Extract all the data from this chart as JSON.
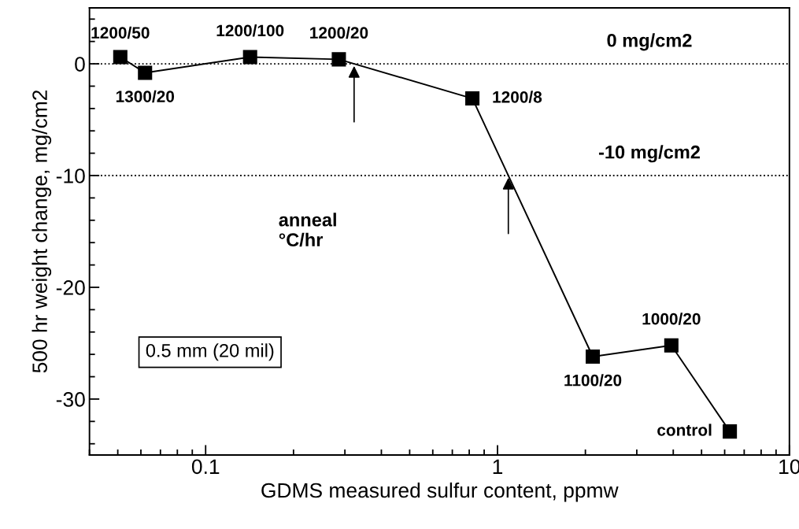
{
  "chart_data": {
    "type": "line",
    "xlabel": "GDMS measured sulfur content, ppmw",
    "ylabel": "500 hr weight change, mg/cm2",
    "x": [
      0.051,
      0.062,
      0.142,
      0.286,
      0.82,
      2.12,
      3.94,
      6.25
    ],
    "series": [
      {
        "color": "#000000",
        "values": [
          0.6,
          -0.8,
          0.6,
          0.4,
          -3.1,
          -26.2,
          -25.2,
          -32.9
        ]
      }
    ],
    "marker": "square",
    "line_style": "solid",
    "log": "x",
    "xlim": [
      0.04,
      10
    ],
    "xticks": [
      0.1,
      1,
      10
    ],
    "ylim": [
      -35,
      5
    ],
    "yticks": [
      -30,
      -20,
      -10,
      0
    ],
    "grid": false,
    "legend": false,
    "ref_lines": [
      {
        "axis": "y",
        "value": 0,
        "label": "0 mg/cm2",
        "line_style": "dotted",
        "color": "#000000"
      },
      {
        "axis": "y",
        "value": -10,
        "label": "-10 mg/cm2",
        "line_style": "dotted",
        "color": "#000000"
      }
    ],
    "annotations": [
      {
        "text": "1200/50",
        "x": 0.051,
        "y": 0.6
      },
      {
        "text": "1300/20",
        "x": 0.062,
        "y": -0.8
      },
      {
        "text": "1200/100",
        "x": 0.142,
        "y": 0.6
      },
      {
        "text": "1200/20",
        "x": 0.286,
        "y": 0.4
      },
      {
        "text": "1200/8",
        "x": 0.82,
        "y": -3.1
      },
      {
        "text": "1100/20",
        "x": 2.12,
        "y": -26.2
      },
      {
        "text": "1000/20",
        "x": 3.94,
        "y": -25.2
      },
      {
        "text": "control",
        "x": 6.25,
        "y": -32.9
      },
      "anneal\n°C/hr",
      "0.5 mm (20 mil)"
    ]
  }
}
